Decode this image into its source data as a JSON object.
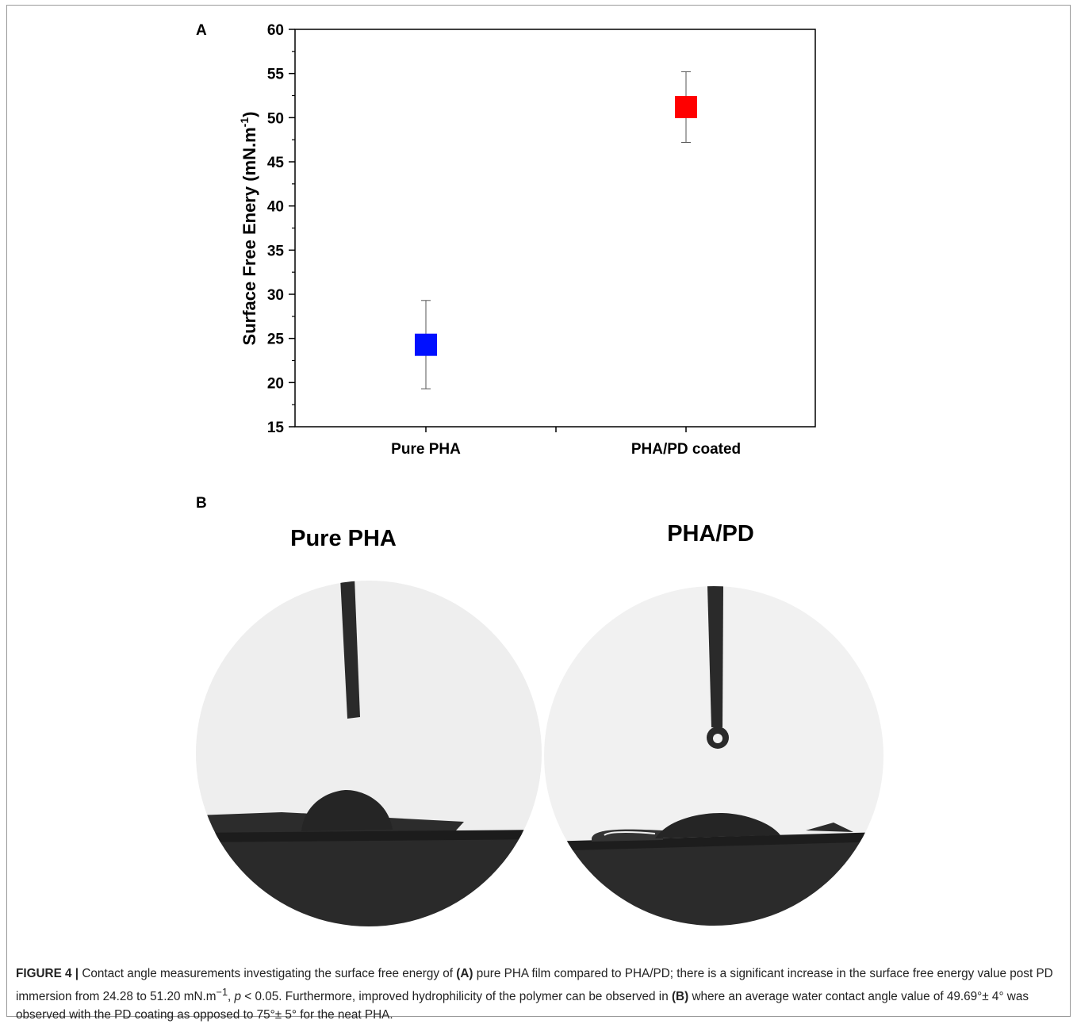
{
  "panels": {
    "a_label": "A",
    "b_label": "B"
  },
  "chart_data": {
    "type": "scatter",
    "categories": [
      "Pure PHA",
      "PHA/PD coated"
    ],
    "values": [
      24.28,
      51.2
    ],
    "error_low": [
      19.3,
      47.2
    ],
    "error_high": [
      29.3,
      55.2
    ],
    "colors": [
      "#0010ff",
      "#ff0000"
    ],
    "ylabel": "Surface Free Enery (mN.m-1)",
    "ylabel_main": "Surface Free Enery (mN.m",
    "ylabel_sup": "-1",
    "ylabel_end": ")",
    "xlabel": "",
    "ylim": [
      15,
      60
    ],
    "yticks": [
      "15",
      "20",
      "25",
      "30",
      "35",
      "40",
      "45",
      "50",
      "55",
      "60"
    ],
    "grid": false
  },
  "photos": {
    "left_title": "Pure PHA",
    "right_title": "PHA/PD"
  },
  "caption": {
    "figure_label": "FIGURE 4 |",
    "t1": " Contact angle measurements investigating the surface free energy of ",
    "ref_a": "(A)",
    "t2": " pure PHA film compared to PHA/PD; there is a significant increase in the surface free energy value post PD immersion from 24.28 to 51.20 mN.m",
    "sup": "−1",
    "t3": ", ",
    "p_sym": "p",
    "t4": " < 0.05. Furthermore, improved hydrophilicity of the polymer can be observed in ",
    "ref_b": "(B)",
    "t5": " where an average water contact angle value of 49.69°± 4° was observed with the PD coating as opposed to 75°± 5° for the neat PHA."
  }
}
